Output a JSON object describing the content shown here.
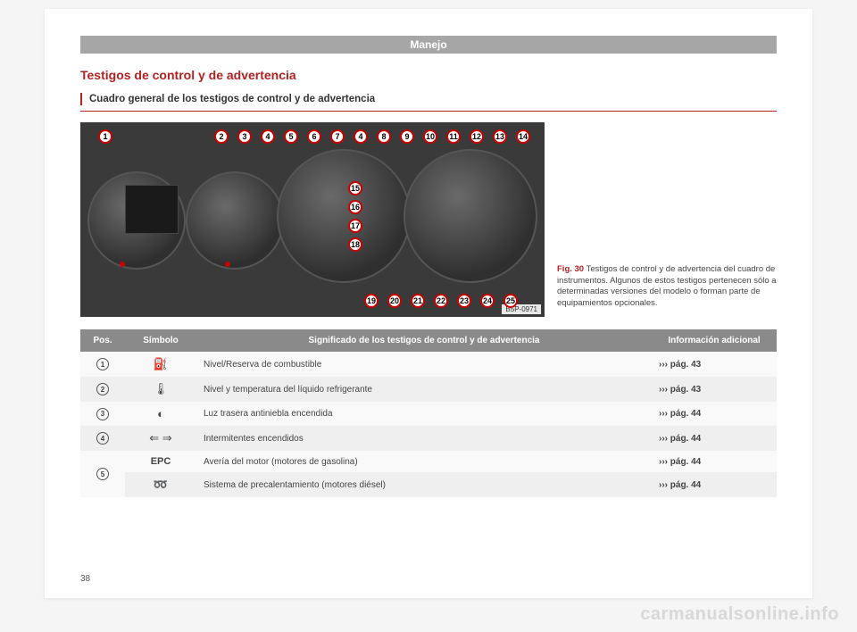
{
  "header": "Manejo",
  "heading": "Testigos de control y de advertencia",
  "subheading": "Cuadro general de los testigos de control y de advertencia",
  "figure": {
    "lead": "Fig. 30",
    "caption": "Testigos de control y de advertencia del cuadro de instrumentos. Algunos de estos testigos pertenecen sólo a determinadas versiones del modelo o forman parte de equipamientos opcionales.",
    "id_label": "B5P-0971",
    "callouts_top": [
      "1",
      "2",
      "3",
      "4",
      "5",
      "6",
      "7",
      "4",
      "8",
      "9",
      "10",
      "11",
      "12",
      "13",
      "14"
    ],
    "callouts_mid": [
      "15",
      "16",
      "17",
      "18"
    ],
    "callouts_bottom": [
      "19",
      "20",
      "21",
      "22",
      "23",
      "24",
      "25"
    ],
    "gauges": {
      "background": "#3a3a3a",
      "ring_color": "#c00000"
    }
  },
  "table": {
    "headers": {
      "pos": "Pos.",
      "symbol": "Símbolo",
      "meaning": "Significado de los testigos de control y de advertencia",
      "info": "Información adicional"
    },
    "rows": [
      {
        "pos": "1",
        "symbol": "⛽",
        "desc": "Nivel/Reserva de combustible",
        "info": "››› pág. 43"
      },
      {
        "pos": "2",
        "symbol": "🌡",
        "desc": "Nivel y temperatura del líquido refrigerante",
        "info": "››› pág. 43"
      },
      {
        "pos": "3",
        "symbol": "◐",
        "desc": "Luz trasera antiniebla encendida",
        "info": "››› pág. 44"
      },
      {
        "pos": "4",
        "symbol": "⇐ ⇒",
        "desc": "Intermitentes encendidos",
        "info": "››› pág. 44"
      },
      {
        "pos": "5",
        "symbol": "EPC",
        "desc": "Avería del motor (motores de gasolina)",
        "info": "››› pág. 44",
        "rowspan": 2
      },
      {
        "pos": "",
        "symbol": "➿",
        "desc": "Sistema de precalentamiento (motores diésel)",
        "info": "››› pág. 44"
      }
    ]
  },
  "page_number": "38",
  "watermark": "carmanualsonline.info"
}
